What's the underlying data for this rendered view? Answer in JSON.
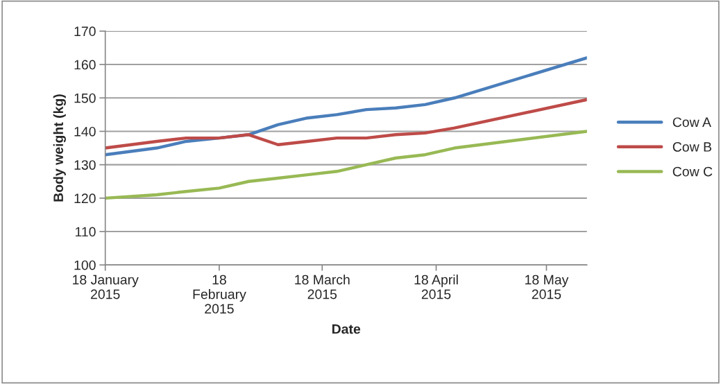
{
  "chart_data": {
    "type": "line",
    "xlabel": "Date",
    "ylabel": "Body weight (kg)",
    "x": [
      "2015-01-18",
      "2015-02-01",
      "2015-02-09",
      "2015-02-18",
      "2015-02-26",
      "2015-03-06",
      "2015-03-14",
      "2015-03-22",
      "2015-03-30",
      "2015-04-07",
      "2015-04-15",
      "2015-04-23",
      "2015-05-29"
    ],
    "series": [
      {
        "name": "Cow A",
        "color": "#4a7ebb",
        "values": [
          133,
          135,
          137,
          138,
          139,
          142,
          144,
          145,
          146.5,
          147,
          148,
          150,
          162
        ]
      },
      {
        "name": "Cow B",
        "color": "#be4b48",
        "values": [
          135,
          137,
          138,
          138,
          139,
          136,
          137,
          138,
          138,
          139,
          139.5,
          141,
          149.5
        ]
      },
      {
        "name": "Cow C",
        "color": "#98b954",
        "values": [
          120,
          121,
          122,
          123,
          125,
          126,
          127,
          128,
          130,
          132,
          133,
          135,
          140
        ]
      }
    ],
    "xlim": [
      "2015-01-18",
      "2015-05-29"
    ],
    "xticks": [
      {
        "value": "2015-01-18",
        "label": "18 January\n2015"
      },
      {
        "value": "2015-02-18",
        "label": "18\nFebruary\n2015"
      },
      {
        "value": "2015-03-18",
        "label": "18 March\n2015"
      },
      {
        "value": "2015-04-18",
        "label": "18 April\n2015"
      },
      {
        "value": "2015-05-18",
        "label": "18 May\n2015"
      }
    ],
    "ylim": [
      100,
      170
    ],
    "yticks": [
      100,
      110,
      120,
      130,
      140,
      150,
      160,
      170
    ],
    "grid": "y",
    "legend": "right",
    "marker": "none",
    "line_style": "solid"
  }
}
